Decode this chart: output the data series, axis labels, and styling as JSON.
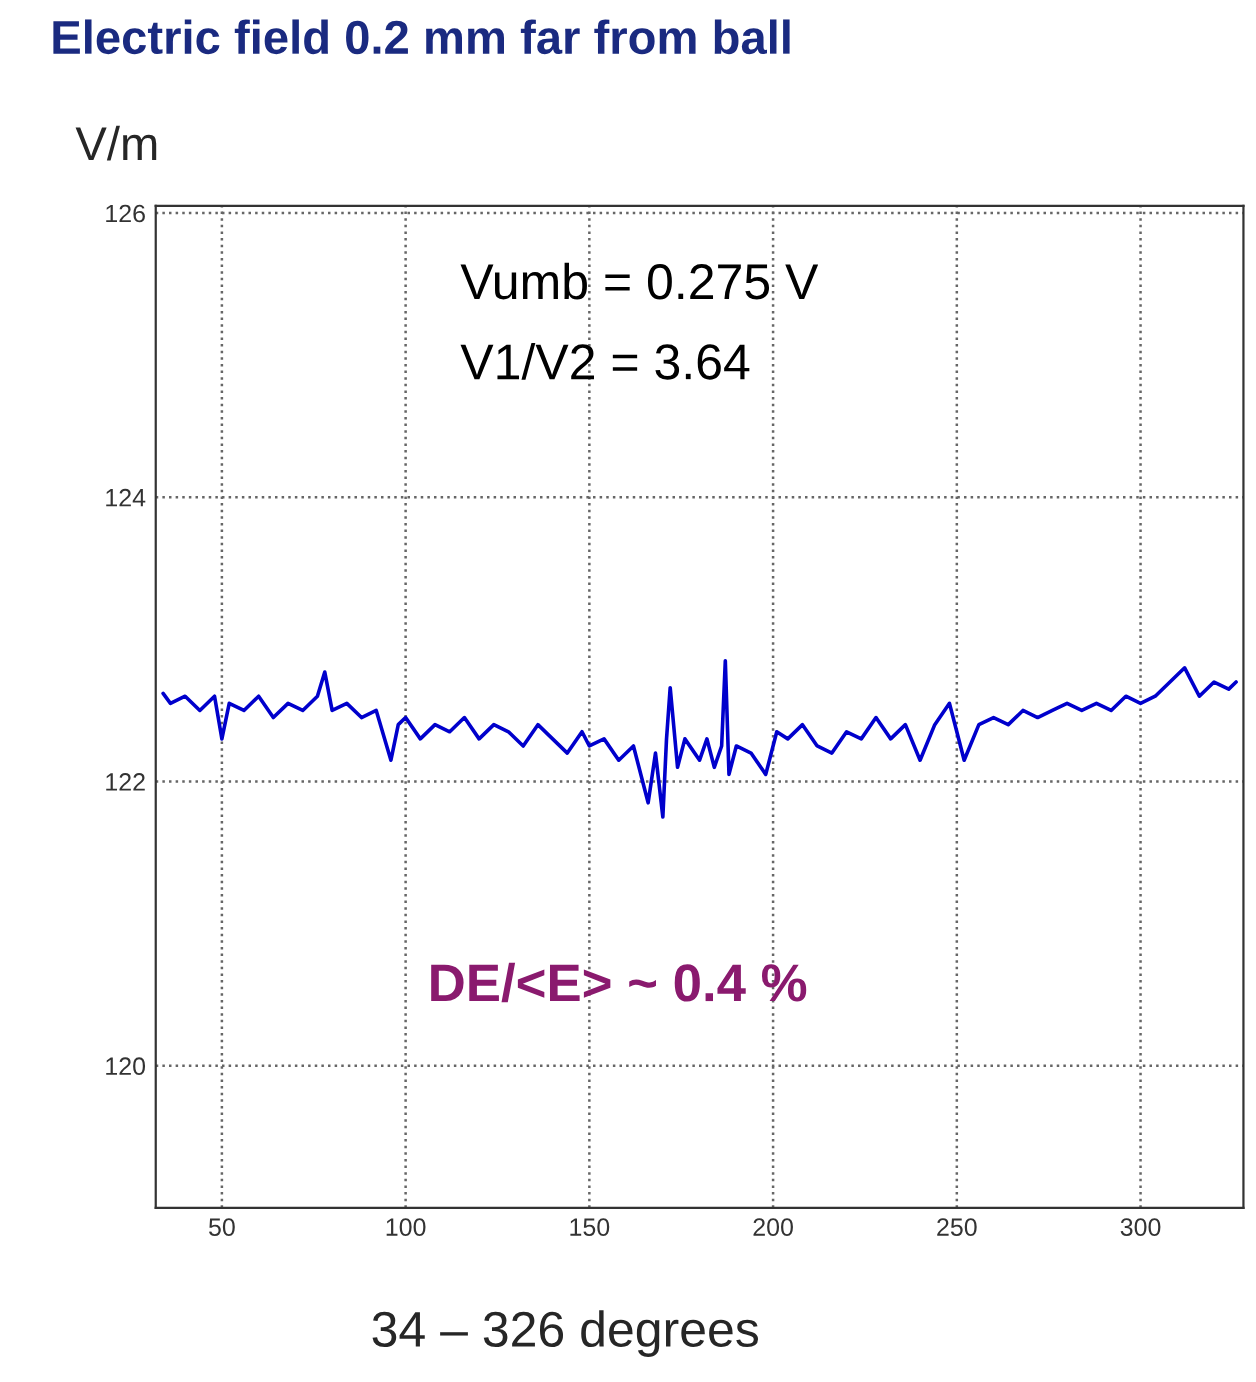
{
  "chart_data": {
    "type": "line",
    "title": "Electric field 0.2 mm far from ball",
    "ylabel": "V/m",
    "xlabel": "34 – 326 degrees",
    "annotations": [
      "Vumb = 0.275 V",
      "V1/V2 = 3.64",
      "DE/<E> ~ 0.4 %"
    ],
    "x": [
      34,
      36,
      40,
      44,
      48,
      50,
      52,
      56,
      60,
      64,
      68,
      72,
      76,
      78,
      80,
      84,
      88,
      92,
      96,
      98,
      100,
      104,
      108,
      112,
      116,
      120,
      124,
      128,
      132,
      136,
      140,
      144,
      148,
      150,
      154,
      158,
      162,
      166,
      168,
      170,
      171,
      172,
      174,
      176,
      180,
      182,
      184,
      186,
      187,
      188,
      190,
      194,
      198,
      201,
      204,
      208,
      212,
      216,
      220,
      224,
      228,
      232,
      236,
      240,
      244,
      248,
      250,
      252,
      256,
      260,
      264,
      268,
      272,
      276,
      280,
      284,
      288,
      292,
      296,
      300,
      304,
      308,
      312,
      316,
      320,
      324,
      326
    ],
    "series": [
      {
        "color": "#0000cc",
        "values": [
          122.62,
          122.55,
          122.6,
          122.5,
          122.6,
          122.3,
          122.55,
          122.5,
          122.6,
          122.45,
          122.55,
          122.5,
          122.6,
          122.77,
          122.5,
          122.55,
          122.45,
          122.5,
          122.15,
          122.4,
          122.45,
          122.3,
          122.4,
          122.35,
          122.45,
          122.3,
          122.4,
          122.35,
          122.25,
          122.4,
          122.3,
          122.2,
          122.35,
          122.25,
          122.3,
          122.15,
          122.25,
          121.85,
          122.2,
          121.75,
          122.3,
          122.66,
          122.1,
          122.3,
          122.15,
          122.3,
          122.1,
          122.25,
          122.85,
          122.05,
          122.25,
          122.2,
          122.05,
          122.35,
          122.3,
          122.4,
          122.25,
          122.2,
          122.35,
          122.3,
          122.45,
          122.3,
          122.4,
          122.15,
          122.4,
          122.55,
          122.35,
          122.15,
          122.4,
          122.45,
          122.4,
          122.5,
          122.45,
          122.5,
          122.55,
          122.5,
          122.55,
          122.5,
          122.6,
          122.55,
          122.6,
          122.7,
          122.8,
          122.6,
          122.7,
          122.65,
          122.7
        ]
      }
    ],
    "xlim": [
      32,
      328
    ],
    "ylim": [
      119,
      126.05
    ],
    "xticks": [
      50,
      100,
      150,
      200,
      250,
      300
    ],
    "yticks": [
      120,
      122,
      124,
      126
    ],
    "grid": true,
    "legend": false,
    "marker": "none",
    "line_style": "solid"
  }
}
